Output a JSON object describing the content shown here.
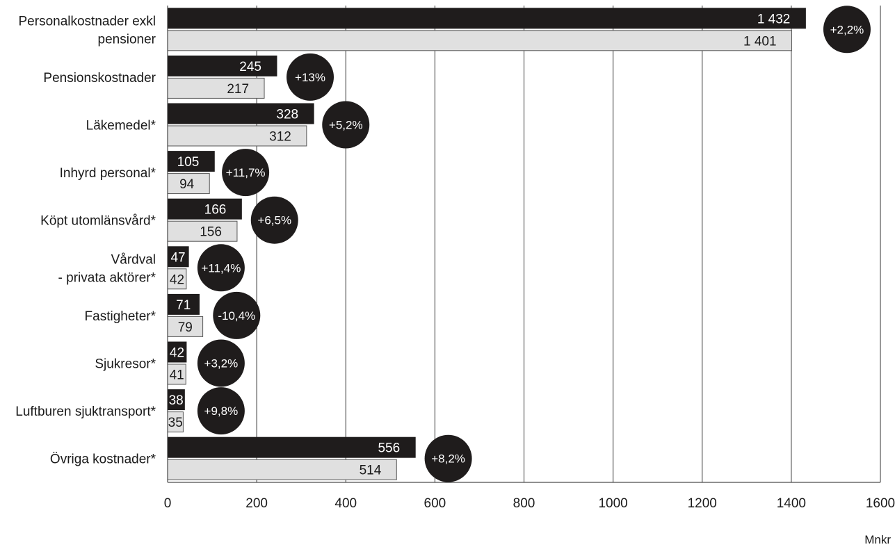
{
  "chart_data": {
    "type": "bar",
    "orientation": "horizontal",
    "categories": [
      "Personalkostnader exkl pensioner",
      "Pensionskostnader",
      "Läkemedel*",
      "Inhyrd personal*",
      "Köpt utomlänsvård*",
      "Vårdval - privata aktörer*",
      "Fastigheter*",
      "Sjukresor*",
      "Luftburen sjuktransport*",
      "Övriga kostnader*"
    ],
    "category_lines": [
      [
        "Personalkostnader exkl",
        "pensioner"
      ],
      [
        "Pensionskostnader"
      ],
      [
        "Läkemedel*"
      ],
      [
        "Inhyrd personal*"
      ],
      [
        "Köpt utomlänsvård*"
      ],
      [
        "Vårdval",
        "- privata aktörer*"
      ],
      [
        "Fastigheter*"
      ],
      [
        "Sjukresor*"
      ],
      [
        "Luftburen sjuktransport*"
      ],
      [
        "Övriga kostnader*"
      ]
    ],
    "series": [
      {
        "color": "#1f1c1c",
        "values": [
          1432,
          245,
          328,
          105,
          166,
          47,
          71,
          42,
          38,
          556
        ],
        "labels": [
          "1 432",
          "245",
          "328",
          "105",
          "166",
          "47",
          "71",
          "42",
          "38",
          "556"
        ]
      },
      {
        "color": "#e0e0e0",
        "values": [
          1401,
          217,
          312,
          94,
          156,
          42,
          79,
          41,
          35,
          514
        ],
        "labels": [
          "1 401",
          "217",
          "312",
          "94",
          "156",
          "42",
          "79",
          "41",
          "35",
          "514"
        ]
      }
    ],
    "changes": [
      "+2,2%",
      "+13%",
      "+5,2%",
      "+11,7%",
      "+6,5%",
      "+11,4%",
      "-10,4%",
      "+3,2%",
      "+9,8%",
      "+8,2%"
    ],
    "change_positions": [
      1525,
      320,
      400,
      175,
      240,
      120,
      155,
      120,
      120,
      630
    ],
    "change_color": "#1f1c1c",
    "xlim": [
      0,
      1600
    ],
    "xticks": [
      0,
      200,
      400,
      600,
      800,
      1000,
      1200,
      1400,
      1600
    ],
    "x_unit": "Mnkr",
    "grid": true,
    "grid_axis": "x"
  }
}
